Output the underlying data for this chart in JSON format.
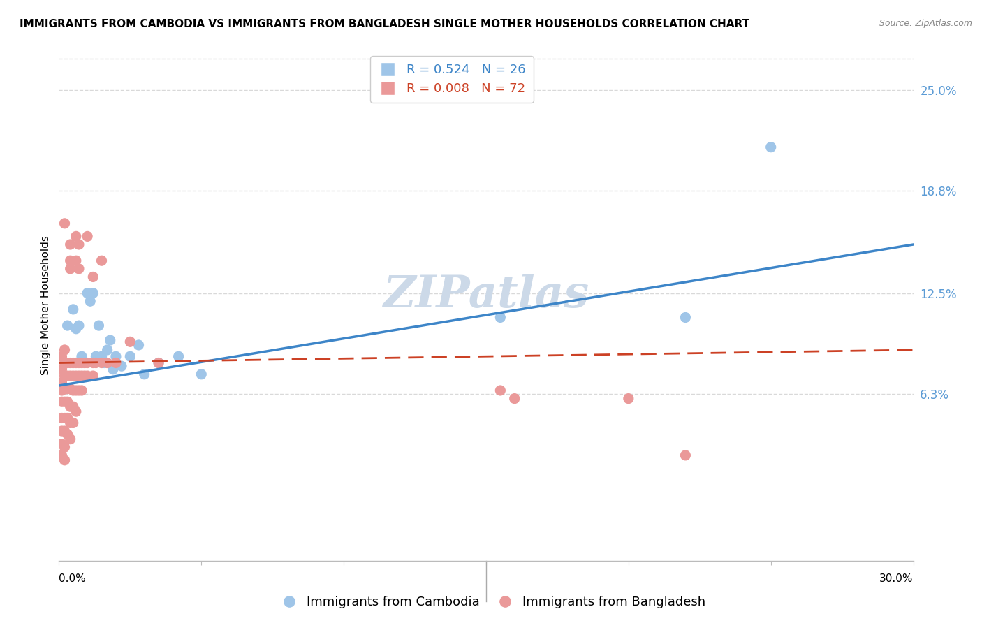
{
  "title": "IMMIGRANTS FROM CAMBODIA VS IMMIGRANTS FROM BANGLADESH SINGLE MOTHER HOUSEHOLDS CORRELATION CHART",
  "source": "Source: ZipAtlas.com",
  "ylabel": "Single Mother Households",
  "ytick_labels": [
    "25.0%",
    "18.8%",
    "12.5%",
    "6.3%"
  ],
  "ytick_values": [
    0.25,
    0.188,
    0.125,
    0.063
  ],
  "xlim": [
    0.0,
    0.3
  ],
  "ylim": [
    -0.04,
    0.275
  ],
  "legend_blue_r": "0.524",
  "legend_blue_n": "26",
  "legend_pink_r": "0.008",
  "legend_pink_n": "72",
  "blue_color": "#9fc5e8",
  "pink_color": "#ea9999",
  "blue_line_color": "#3d85c8",
  "pink_line_color": "#cc4125",
  "watermark": "ZIPatlas",
  "blue_scatter": [
    [
      0.003,
      0.105
    ],
    [
      0.005,
      0.115
    ],
    [
      0.006,
      0.103
    ],
    [
      0.007,
      0.105
    ],
    [
      0.008,
      0.086
    ],
    [
      0.01,
      0.125
    ],
    [
      0.011,
      0.12
    ],
    [
      0.012,
      0.125
    ],
    [
      0.013,
      0.086
    ],
    [
      0.014,
      0.105
    ],
    [
      0.015,
      0.086
    ],
    [
      0.016,
      0.082
    ],
    [
      0.017,
      0.09
    ],
    [
      0.018,
      0.096
    ],
    [
      0.019,
      0.078
    ],
    [
      0.02,
      0.086
    ],
    [
      0.022,
      0.08
    ],
    [
      0.025,
      0.086
    ],
    [
      0.028,
      0.093
    ],
    [
      0.03,
      0.075
    ],
    [
      0.035,
      0.082
    ],
    [
      0.042,
      0.086
    ],
    [
      0.05,
      0.075
    ],
    [
      0.155,
      0.11
    ],
    [
      0.22,
      0.11
    ],
    [
      0.25,
      0.215
    ]
  ],
  "pink_scatter": [
    [
      0.001,
      0.086
    ],
    [
      0.001,
      0.078
    ],
    [
      0.001,
      0.07
    ],
    [
      0.001,
      0.065
    ],
    [
      0.001,
      0.058
    ],
    [
      0.001,
      0.048
    ],
    [
      0.001,
      0.04
    ],
    [
      0.001,
      0.032
    ],
    [
      0.001,
      0.025
    ],
    [
      0.002,
      0.168
    ],
    [
      0.002,
      0.09
    ],
    [
      0.002,
      0.082
    ],
    [
      0.002,
      0.074
    ],
    [
      0.002,
      0.066
    ],
    [
      0.002,
      0.058
    ],
    [
      0.002,
      0.048
    ],
    [
      0.002,
      0.04
    ],
    [
      0.002,
      0.03
    ],
    [
      0.002,
      0.022
    ],
    [
      0.003,
      0.082
    ],
    [
      0.003,
      0.074
    ],
    [
      0.003,
      0.066
    ],
    [
      0.003,
      0.058
    ],
    [
      0.003,
      0.048
    ],
    [
      0.003,
      0.038
    ],
    [
      0.004,
      0.155
    ],
    [
      0.004,
      0.145
    ],
    [
      0.004,
      0.14
    ],
    [
      0.004,
      0.082
    ],
    [
      0.004,
      0.074
    ],
    [
      0.004,
      0.066
    ],
    [
      0.004,
      0.055
    ],
    [
      0.004,
      0.045
    ],
    [
      0.004,
      0.035
    ],
    [
      0.005,
      0.082
    ],
    [
      0.005,
      0.074
    ],
    [
      0.005,
      0.065
    ],
    [
      0.005,
      0.055
    ],
    [
      0.005,
      0.045
    ],
    [
      0.006,
      0.16
    ],
    [
      0.006,
      0.145
    ],
    [
      0.006,
      0.082
    ],
    [
      0.006,
      0.074
    ],
    [
      0.006,
      0.065
    ],
    [
      0.006,
      0.052
    ],
    [
      0.007,
      0.155
    ],
    [
      0.007,
      0.14
    ],
    [
      0.007,
      0.082
    ],
    [
      0.007,
      0.074
    ],
    [
      0.007,
      0.065
    ],
    [
      0.008,
      0.082
    ],
    [
      0.008,
      0.074
    ],
    [
      0.008,
      0.065
    ],
    [
      0.009,
      0.082
    ],
    [
      0.009,
      0.074
    ],
    [
      0.01,
      0.16
    ],
    [
      0.01,
      0.082
    ],
    [
      0.01,
      0.074
    ],
    [
      0.012,
      0.135
    ],
    [
      0.012,
      0.082
    ],
    [
      0.012,
      0.074
    ],
    [
      0.013,
      0.082
    ],
    [
      0.015,
      0.145
    ],
    [
      0.015,
      0.082
    ],
    [
      0.017,
      0.082
    ],
    [
      0.02,
      0.082
    ],
    [
      0.025,
      0.095
    ],
    [
      0.035,
      0.082
    ],
    [
      0.155,
      0.065
    ],
    [
      0.16,
      0.06
    ],
    [
      0.2,
      0.06
    ],
    [
      0.22,
      0.025
    ]
  ],
  "blue_line_x": [
    0.0,
    0.3
  ],
  "blue_line_y": [
    0.068,
    0.155
  ],
  "pink_line_x": [
    0.0,
    0.3
  ],
  "pink_line_y": [
    0.082,
    0.09
  ],
  "title_fontsize": 11,
  "source_fontsize": 9,
  "axis_label_fontsize": 11,
  "tick_fontsize": 11,
  "legend_fontsize": 13,
  "watermark_fontsize": 46,
  "watermark_color": "#ccd9e8",
  "background_color": "#ffffff",
  "plot_bg_color": "#ffffff",
  "grid_color": "#d9d9d9",
  "right_axis_color": "#5b9bd5",
  "bottom_legend_label_blue": "Immigrants from Cambodia",
  "bottom_legend_label_pink": "Immigrants from Bangladesh"
}
